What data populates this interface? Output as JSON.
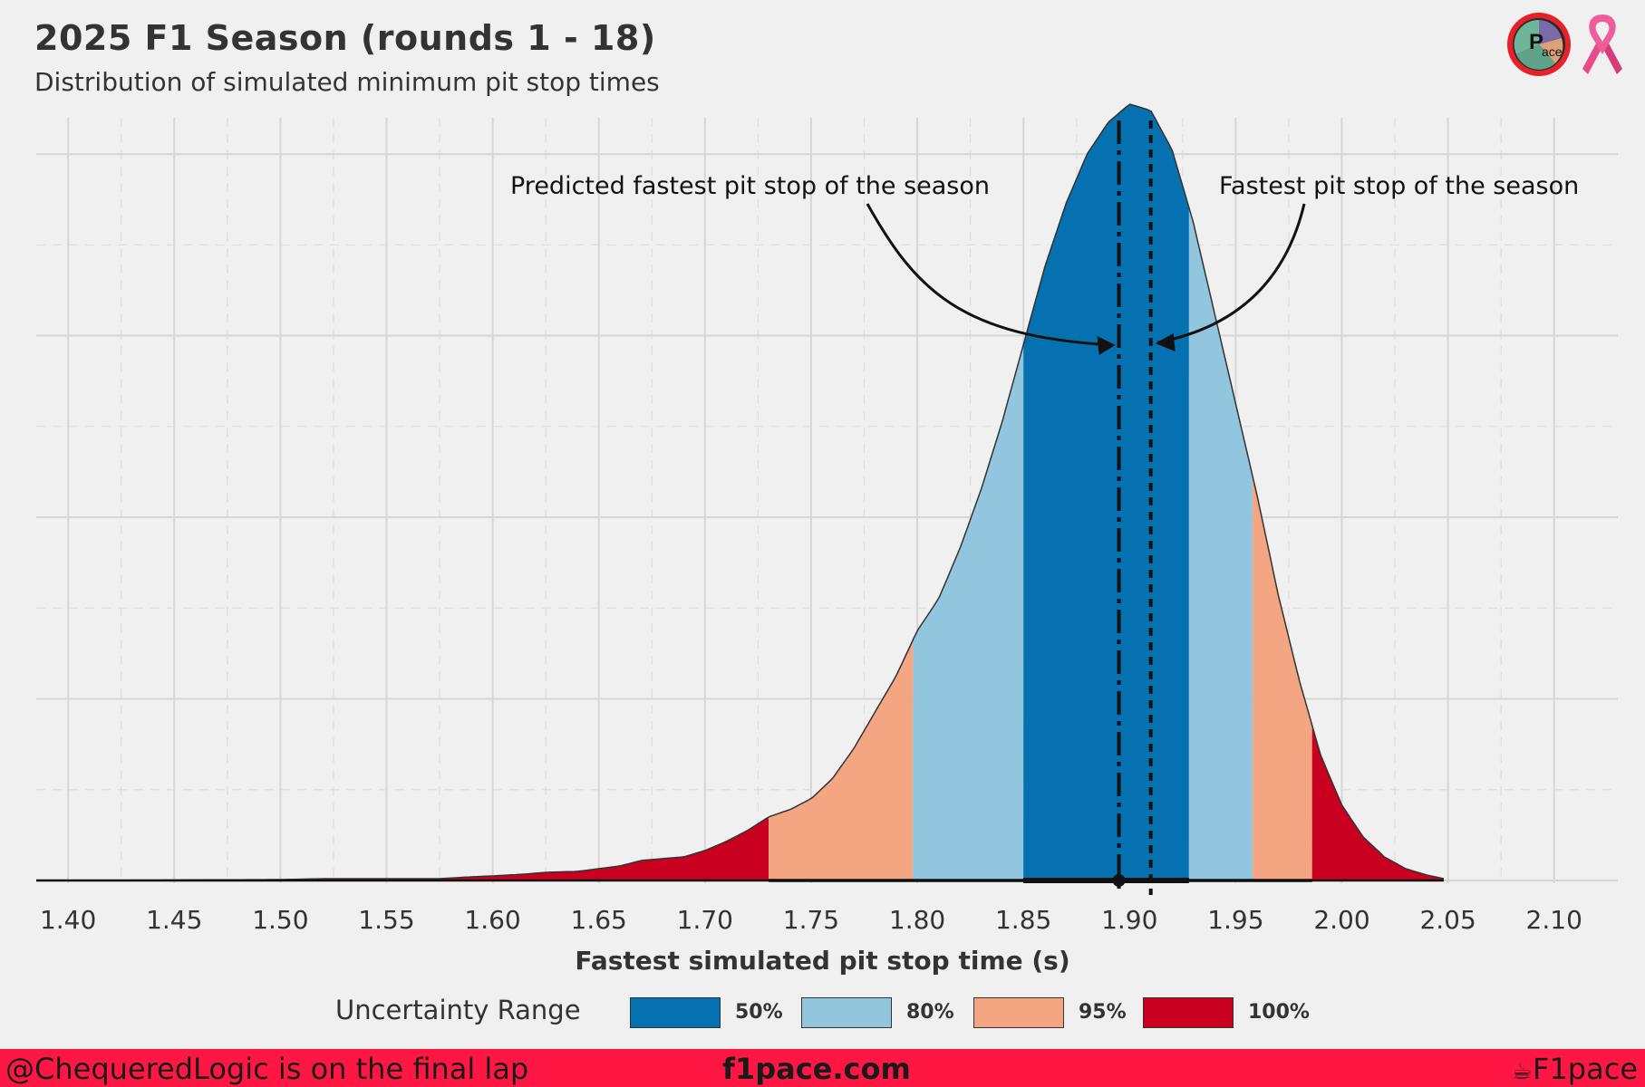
{
  "header": {
    "title": "2025 F1 Season (rounds 1 - 18)",
    "subtitle": "Distribution of simulated minimum pit stop times"
  },
  "annotations": {
    "predicted": "Predicted fastest pit stop of the season",
    "actual": "Fastest pit stop of the season"
  },
  "legend": {
    "title": "Uncertainty Range",
    "items": [
      {
        "label": "50%",
        "color": "#0571b0"
      },
      {
        "label": "80%",
        "color": "#92c5de"
      },
      {
        "label": "95%",
        "color": "#f4a582"
      },
      {
        "label": "100%",
        "color": "#ca0020"
      }
    ]
  },
  "footer": {
    "left": "@ChequeredLogic is on the final lap",
    "center": "f1pace.com",
    "right": "F1pace",
    "bar_color": "#ff1744"
  },
  "logos": {
    "pace_logo_text": "ace"
  },
  "chart_data": {
    "type": "area",
    "title": "2025 F1 Season (rounds 1 - 18)",
    "subtitle": "Distribution of simulated minimum pit stop times",
    "xlabel": "Fastest simulated pit stop time (s)",
    "ylabel": "",
    "xlim": [
      1.385,
      2.13
    ],
    "ylim": [
      0,
      8.3
    ],
    "grid": true,
    "x_ticks": [
      1.4,
      1.45,
      1.5,
      1.55,
      1.6,
      1.65,
      1.7,
      1.75,
      1.8,
      1.85,
      1.9,
      1.95,
      2.0,
      2.05,
      2.1
    ],
    "x_tick_labels": [
      "1.40",
      "1.45",
      "1.50",
      "1.55",
      "1.60",
      "1.65",
      "1.70",
      "1.75",
      "1.80",
      "1.85",
      "1.90",
      "1.95",
      "2.00",
      "2.05",
      "2.10"
    ],
    "y_gridlines": [
      0,
      1,
      2,
      3,
      4,
      5,
      6,
      7,
      8
    ],
    "density": {
      "x": [
        1.385,
        1.45,
        1.5,
        1.52,
        1.55,
        1.575,
        1.59,
        1.6,
        1.615,
        1.625,
        1.64,
        1.65,
        1.66,
        1.67,
        1.68,
        1.69,
        1.7,
        1.71,
        1.72,
        1.73,
        1.74,
        1.75,
        1.76,
        1.77,
        1.78,
        1.79,
        1.8,
        1.81,
        1.82,
        1.83,
        1.84,
        1.85,
        1.86,
        1.87,
        1.88,
        1.89,
        1.9,
        1.91,
        1.92,
        1.93,
        1.94,
        1.95,
        1.96,
        1.97,
        1.98,
        1.99,
        2.0,
        2.01,
        2.02,
        2.03,
        2.04,
        2.048
      ],
      "y": [
        0,
        0.005,
        0.01,
        0.02,
        0.02,
        0.02,
        0.04,
        0.05,
        0.07,
        0.09,
        0.1,
        0.13,
        0.16,
        0.22,
        0.24,
        0.26,
        0.33,
        0.43,
        0.55,
        0.7,
        0.78,
        0.9,
        1.12,
        1.45,
        1.85,
        2.25,
        2.75,
        3.1,
        3.65,
        4.3,
        5.05,
        5.9,
        6.75,
        7.45,
        8.0,
        8.35,
        8.55,
        8.48,
        8.05,
        7.25,
        6.25,
        5.25,
        4.25,
        3.15,
        2.2,
        1.38,
        0.83,
        0.48,
        0.26,
        0.13,
        0.06,
        0.02
      ]
    },
    "bands": [
      {
        "range": "100%",
        "from": 1.385,
        "to": 1.73,
        "color": "#ca0020"
      },
      {
        "range": "95%",
        "from": 1.73,
        "to": 1.798,
        "color": "#f4a582"
      },
      {
        "range": "80%",
        "from": 1.798,
        "to": 1.85,
        "color": "#92c5de"
      },
      {
        "range": "50%",
        "from": 1.85,
        "to": 1.928,
        "color": "#0571b0"
      },
      {
        "range": "80%",
        "from": 1.928,
        "to": 1.958,
        "color": "#92c5de"
      },
      {
        "range": "95%",
        "from": 1.958,
        "to": 1.986,
        "color": "#f4a582"
      },
      {
        "range": "100%",
        "from": 1.986,
        "to": 2.048,
        "color": "#ca0020"
      }
    ],
    "interval_bars": [
      {
        "range": "95%",
        "from": 1.73,
        "to": 1.986
      },
      {
        "range": "50%",
        "from": 1.85,
        "to": 1.928
      }
    ],
    "point_estimate": 1.895,
    "vlines": [
      {
        "name": "predicted",
        "x": 1.895,
        "style": "dashdot"
      },
      {
        "name": "actual",
        "x": 1.91,
        "style": "dotted"
      }
    ]
  }
}
